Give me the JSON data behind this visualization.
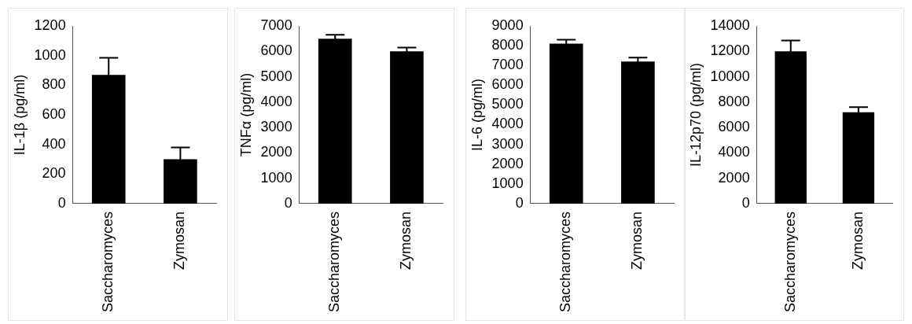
{
  "chart_data": [
    {
      "type": "bar",
      "ylabel": "IL-1β (pg/ml)",
      "categories": [
        "Saccharomyces",
        "Zymosan"
      ],
      "values": [
        870,
        300
      ],
      "errors": [
        115,
        80
      ],
      "color": "#000000",
      "ylim": [
        0,
        1200
      ],
      "yticks": [
        0,
        200,
        400,
        600,
        800,
        1000,
        1200
      ],
      "grid": false,
      "legend": false
    },
    {
      "type": "bar",
      "ylabel": "TNFα (pg/ml)",
      "categories": [
        "Saccharomyces",
        "Zymosan"
      ],
      "values": [
        6500,
        6000
      ],
      "errors": [
        150,
        150
      ],
      "color": "#000000",
      "ylim": [
        0,
        7000
      ],
      "yticks": [
        0,
        1000,
        2000,
        3000,
        4000,
        5000,
        6000,
        7000
      ],
      "grid": false,
      "legend": false
    },
    {
      "type": "bar",
      "ylabel": "IL-6 (pg/ml)",
      "categories": [
        "Saccharomyces",
        "Zymosan"
      ],
      "values": [
        8100,
        7200
      ],
      "errors": [
        200,
        200
      ],
      "color": "#000000",
      "ylim": [
        0,
        9000
      ],
      "yticks": [
        0,
        1000,
        2000,
        3000,
        4000,
        5000,
        6000,
        7000,
        8000,
        9000
      ],
      "grid": false,
      "legend": false
    },
    {
      "type": "bar",
      "ylabel": "IL-12p70 (pg/ml)",
      "categories": [
        "Saccharomyces",
        "Zymosan"
      ],
      "values": [
        12000,
        7200
      ],
      "errors": [
        850,
        400
      ],
      "color": "#000000",
      "ylim": [
        0,
        14000
      ],
      "yticks": [
        0,
        2000,
        4000,
        6000,
        8000,
        10000,
        12000,
        14000
      ],
      "grid": false,
      "legend": false
    }
  ]
}
